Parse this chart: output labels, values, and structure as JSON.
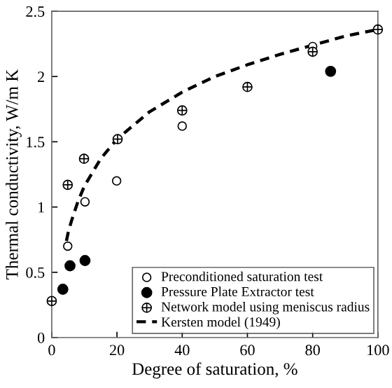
{
  "chart_data": {
    "type": "scatter",
    "xlabel": "Degree of saturation, %",
    "ylabel": "Thermal conductivity, W/m K",
    "xlim": [
      0,
      100
    ],
    "ylim": [
      0,
      2.5
    ],
    "xticks": [
      0,
      20,
      40,
      60,
      80,
      100
    ],
    "yticks": [
      0,
      {
        "value": 0.5,
        "label": "0.5"
      },
      1,
      {
        "value": 1.5,
        "label": "1.5"
      },
      2,
      {
        "value": 2.5,
        "label": "2.5"
      }
    ],
    "grid": false,
    "legend": "bottom right",
    "series": [
      {
        "name": "Preconditioned saturation test",
        "marker": "circle",
        "color": "#000000",
        "x": [
          4.9,
          10.2,
          19.9,
          40,
          60,
          80
        ],
        "values": [
          0.7,
          1.04,
          1.2,
          1.62,
          null,
          2.23
        ]
      },
      {
        "name": "Pressure Plate Extractor test",
        "marker": "circle",
        "color": "#000000",
        "x": [
          3.4,
          5.6,
          10.2,
          85.5
        ],
        "values": [
          0.37,
          0.55,
          0.59,
          2.04
        ]
      },
      {
        "name": "Network model using meniscus radius",
        "marker": "cross",
        "color": "#000000",
        "x": [
          0,
          4.9,
          9.9,
          20.2,
          40,
          60,
          80,
          100
        ],
        "values": [
          0.28,
          1.17,
          1.37,
          1.52,
          1.74,
          1.92,
          2.19,
          2.36
        ]
      },
      {
        "name": "Kersten model (1949)",
        "type": "line",
        "line_style": "dashed",
        "marker": "none",
        "color": "#000000",
        "x": [
          4.5,
          5,
          6,
          8,
          10,
          15,
          20,
          30,
          40,
          50,
          60,
          70,
          80,
          90,
          100
        ],
        "values": [
          0.74,
          0.8,
          0.89,
          1.04,
          1.16,
          1.37,
          1.52,
          1.73,
          1.88,
          2.0,
          2.09,
          2.17,
          2.24,
          2.31,
          2.36
        ]
      }
    ]
  }
}
